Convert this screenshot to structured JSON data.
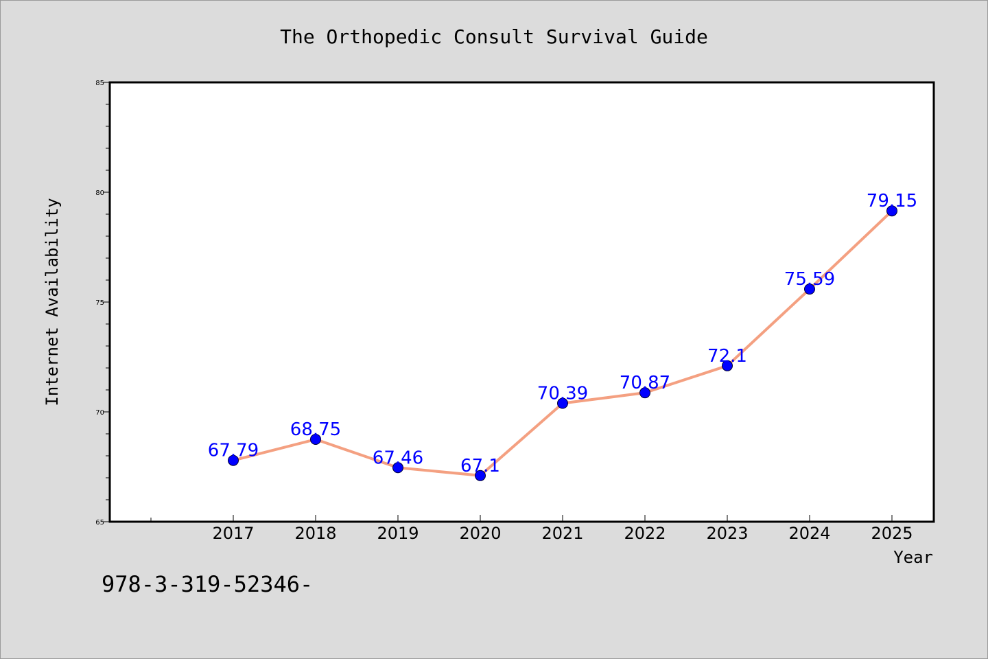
{
  "chart_data": {
    "type": "line",
    "title": "The Orthopedic Consult Survival Guide",
    "xlabel": "Year",
    "ylabel": "Internet Availability",
    "categories": [
      "2017",
      "2018",
      "2019",
      "2020",
      "2021",
      "2022",
      "2023",
      "2024",
      "2025"
    ],
    "series": [
      {
        "values": [
          67.79,
          68.75,
          67.46,
          67.1,
          70.39,
          70.87,
          72.1,
          75.59,
          79.15
        ],
        "labels": [
          "67.79",
          "68.75",
          "67.46",
          "67.1",
          "70.39",
          "70.87",
          "72.1",
          "75.59",
          "79.15"
        ],
        "line_color": "#f4a081",
        "marker_color": "#0000ff",
        "label_color": "#0000ff"
      }
    ],
    "ylim": [
      65,
      85
    ],
    "yticks": [
      "65",
      "70",
      "75",
      "80",
      "85"
    ],
    "grid": false,
    "legend": "none"
  },
  "footer_text": "978-3-319-52346-"
}
